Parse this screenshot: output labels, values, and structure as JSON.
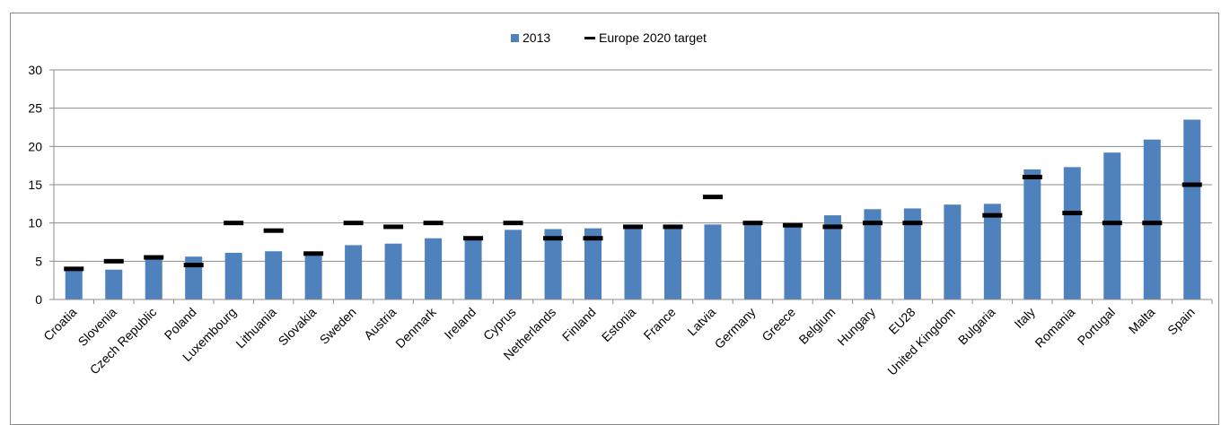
{
  "chart_data": {
    "type": "bar",
    "title": "",
    "xlabel": "",
    "ylabel": "",
    "ylim": [
      0,
      30
    ],
    "yticks": [
      "0",
      "5",
      "10",
      "15",
      "20",
      "25",
      "30"
    ],
    "grid": true,
    "legend_position": "top-center",
    "categories": [
      "Croatia",
      "Slovenia",
      "Czech Republic",
      "Poland",
      "Luxembourg",
      "Lithuania",
      "Slovakia",
      "Sweden",
      "Austria",
      "Denmark",
      "Ireland",
      "Cyprus",
      "Netherlands",
      "Finland",
      "Estonia",
      "France",
      "Latvia",
      "Germany",
      "Greece",
      "Belgium",
      "Hungary",
      "EU28",
      "United Kingdom",
      "Bulgaria",
      "Italy",
      "Romania",
      "Portugal",
      "Malta",
      "Spain"
    ],
    "series": [
      {
        "name": "2013",
        "kind": "bar",
        "color": "#4f81bd",
        "values": [
          4.0,
          3.9,
          5.5,
          5.6,
          6.1,
          6.3,
          6.2,
          7.1,
          7.3,
          8.0,
          8.1,
          9.1,
          9.2,
          9.3,
          9.7,
          9.6,
          9.8,
          9.9,
          9.8,
          11.0,
          11.8,
          11.9,
          12.4,
          12.5,
          17.0,
          17.3,
          19.2,
          20.9,
          23.5
        ]
      },
      {
        "name": "Europe 2020 target",
        "kind": "marker",
        "color": "#000000",
        "values": [
          4.0,
          5.0,
          5.5,
          4.5,
          10.0,
          9.0,
          6.0,
          10.0,
          9.5,
          10.0,
          8.0,
          10.0,
          8.0,
          8.0,
          9.5,
          9.5,
          13.4,
          10.0,
          9.7,
          9.5,
          10.0,
          10.0,
          null,
          11.0,
          16.0,
          11.3,
          10.0,
          10.0,
          15.0
        ]
      }
    ]
  }
}
